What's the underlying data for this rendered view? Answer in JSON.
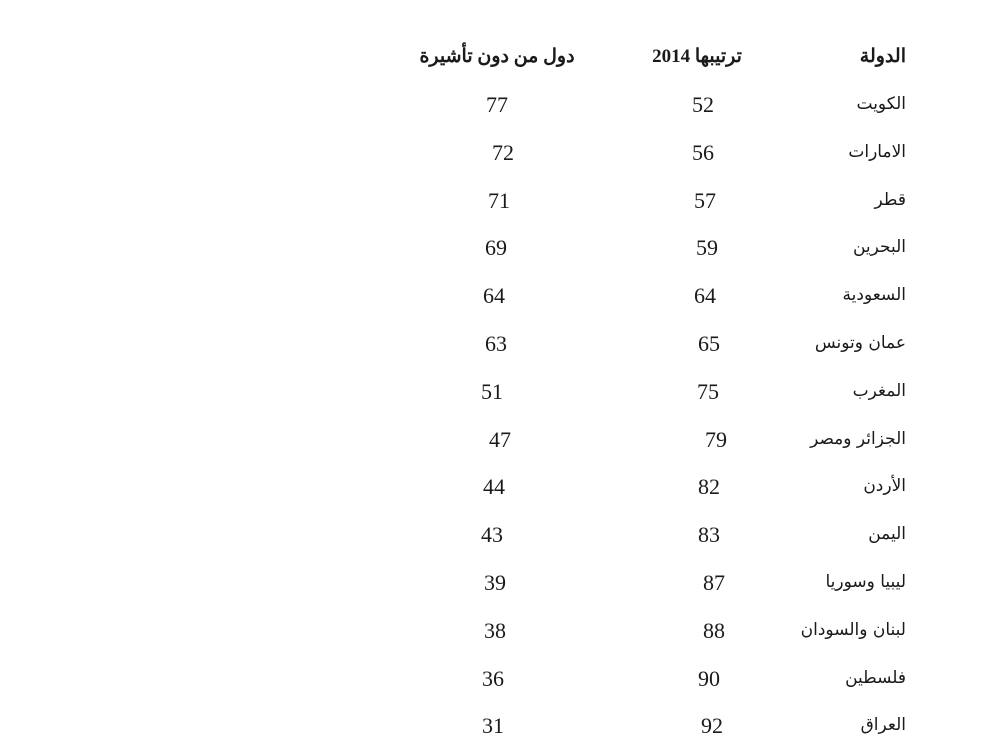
{
  "table": {
    "headers": {
      "country": "الدولة",
      "rank_2014": "ترتيبها 2014",
      "visa_free": "دول من دون تأشيرة"
    },
    "rows": [
      {
        "country": "الكويت",
        "rank_2014": "52",
        "visa_free": "77"
      },
      {
        "country": "الامارات",
        "rank_2014": "56",
        "visa_free": "72"
      },
      {
        "country": "قطر",
        "rank_2014": "57",
        "visa_free": "71"
      },
      {
        "country": "البحرين",
        "rank_2014": "59",
        "visa_free": "69"
      },
      {
        "country": "السعودية",
        "rank_2014": "64",
        "visa_free": "64"
      },
      {
        "country": "عمان وتونس",
        "rank_2014": "65",
        "visa_free": "63"
      },
      {
        "country": "المغرب",
        "rank_2014": "75",
        "visa_free": "51"
      },
      {
        "country": "الجزائر ومصر",
        "rank_2014": "79",
        "visa_free": "47"
      },
      {
        "country": "الأردن",
        "rank_2014": "82",
        "visa_free": "44"
      },
      {
        "country": "اليمن",
        "rank_2014": "83",
        "visa_free": "43"
      },
      {
        "country": "ليبيا وسوريا",
        "rank_2014": "87",
        "visa_free": "39"
      },
      {
        "country": "لبنان والسودان",
        "rank_2014": "88",
        "visa_free": "38"
      },
      {
        "country": "فلسطين",
        "rank_2014": "90",
        "visa_free": "36"
      },
      {
        "country": "العراق",
        "rank_2014": "92",
        "visa_free": "31"
      }
    ]
  }
}
